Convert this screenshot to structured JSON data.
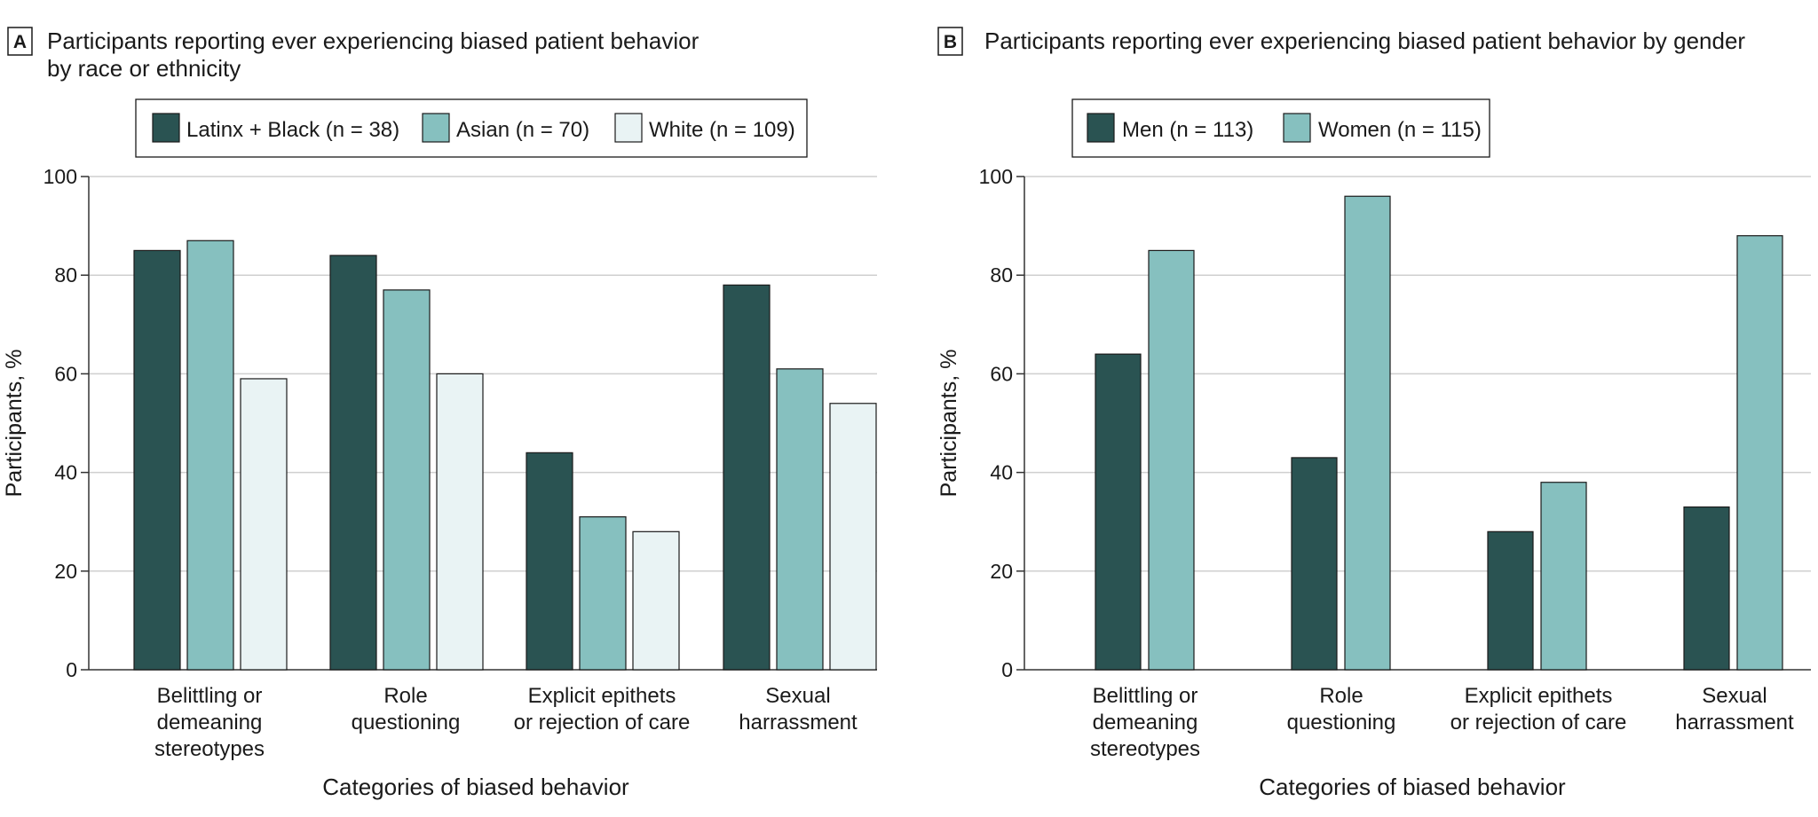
{
  "colors": {
    "dark_teal": "#2a5352",
    "teal": "#86c0bf",
    "pale": "#e9f3f4",
    "grid": "#cfcfcf",
    "axis": "#333333"
  },
  "chart_data": [
    {
      "type": "bar",
      "panel_letter": "A",
      "title_lines": [
        "Participants reporting ever experiencing biased patient behavior",
        "by race or ethnicity"
      ],
      "legend": [
        "Latinx + Black (n = 38)",
        "Asian (n = 70)",
        "White (n = 109)"
      ],
      "ylabel": "Participants, %",
      "xlabel": "Categories of biased behavior",
      "ylim": [
        0,
        100
      ],
      "yticks": [
        "0",
        "20",
        "40",
        "60",
        "80",
        "100"
      ],
      "categories": [
        [
          "Belittling or",
          "demeaning",
          "stereotypes"
        ],
        [
          "Role",
          "questioning"
        ],
        [
          "Explicit epithets",
          "or rejection of care"
        ],
        [
          "Sexual",
          "harrassment"
        ]
      ],
      "series": [
        {
          "name": "Latinx + Black (n = 38)",
          "values": [
            85,
            84,
            44,
            78
          ]
        },
        {
          "name": "Asian (n = 70)",
          "values": [
            87,
            77,
            31,
            61
          ]
        },
        {
          "name": "White (n = 109)",
          "values": [
            59,
            60,
            28,
            54
          ]
        }
      ]
    },
    {
      "type": "bar",
      "panel_letter": "B",
      "title_lines": [
        "Participants reporting ever experiencing biased patient behavior by gender"
      ],
      "legend": [
        "Men (n = 113)",
        "Women (n = 115)"
      ],
      "ylabel": "Participants, %",
      "xlabel": "Categories of biased behavior",
      "ylim": [
        0,
        100
      ],
      "yticks": [
        "0",
        "20",
        "40",
        "60",
        "80",
        "100"
      ],
      "categories": [
        [
          "Belittling or",
          "demeaning",
          "stereotypes"
        ],
        [
          "Role",
          "questioning"
        ],
        [
          "Explicit epithets",
          "or rejection of care"
        ],
        [
          "Sexual",
          "harrassment"
        ]
      ],
      "series": [
        {
          "name": "Men (n = 113)",
          "values": [
            64,
            43,
            28,
            33
          ]
        },
        {
          "name": "Women (n = 115)",
          "values": [
            85,
            96,
            38,
            88
          ]
        }
      ]
    }
  ]
}
